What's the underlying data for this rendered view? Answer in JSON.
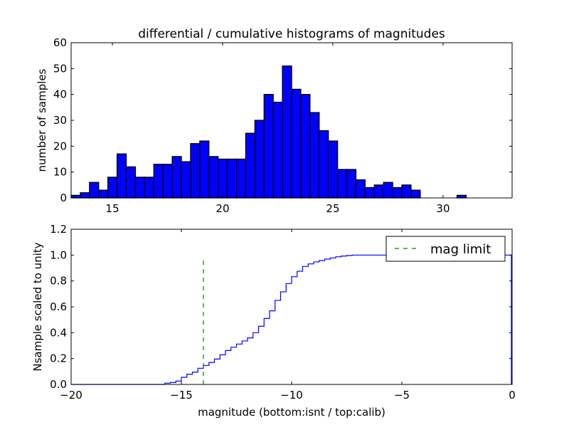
{
  "chart_data": [
    {
      "type": "bar",
      "title": "differential / cumulative histograms of magnitudes",
      "xlabel": "",
      "ylabel": "number of samples",
      "xlim": [
        13.13,
        33.13
      ],
      "ylim": [
        0,
        60
      ],
      "bin_start": 13.13,
      "bin_width": 0.4167,
      "values": [
        1,
        2,
        6,
        3,
        8,
        17,
        12,
        8,
        8,
        13,
        13,
        16,
        14,
        21,
        22,
        16,
        15,
        15,
        15,
        25,
        30,
        40,
        37,
        51,
        42,
        40,
        33,
        26,
        22,
        11,
        11,
        7,
        4,
        5,
        6,
        4,
        5,
        3,
        0,
        0,
        0,
        0,
        1,
        0,
        0,
        0,
        0,
        0
      ],
      "xticks": [
        "15",
        "20",
        "25",
        "30"
      ],
      "xtick_values": [
        15,
        20,
        25,
        30
      ],
      "yticks": [
        "0",
        "10",
        "20",
        "30",
        "40",
        "50",
        "60"
      ],
      "ytick_values": [
        0,
        10,
        20,
        30,
        40,
        50,
        60
      ],
      "bar_color": "#0000ff",
      "edge_color": "#000000"
    },
    {
      "type": "line",
      "xlabel": "magnitude (bottom:isnt / top:calib)",
      "ylabel": "Nsample scaled to unity",
      "xlim": [
        -20,
        0
      ],
      "ylim": [
        0,
        1.2
      ],
      "step_start": -15.75,
      "step_width": 0.25,
      "values": [
        0.01,
        0.015,
        0.026,
        0.055,
        0.079,
        0.095,
        0.125,
        0.147,
        0.17,
        0.196,
        0.229,
        0.262,
        0.288,
        0.312,
        0.336,
        0.36,
        0.4,
        0.45,
        0.51,
        0.569,
        0.65,
        0.716,
        0.78,
        0.833,
        0.875,
        0.912,
        0.932,
        0.947,
        0.958,
        0.969,
        0.978,
        0.987,
        0.993,
        0.997,
        1.0
      ],
      "line_color": "#0000ff",
      "xticks": [
        "−20",
        "−15",
        "−10",
        "−5",
        "0"
      ],
      "xtick_values": [
        -20,
        -15,
        -10,
        -5,
        0
      ],
      "yticks": [
        "0.0",
        "0.2",
        "0.4",
        "0.6",
        "0.8",
        "1.0",
        "1.2"
      ],
      "ytick_values": [
        0,
        0.2,
        0.4,
        0.6,
        0.8,
        1.0,
        1.2
      ],
      "mag_limit": {
        "x": -14,
        "y_top": 0.97,
        "label": "mag limit",
        "color": "#008000"
      },
      "legend": {
        "placement": "top-right",
        "entries": [
          "mag limit"
        ]
      }
    }
  ]
}
